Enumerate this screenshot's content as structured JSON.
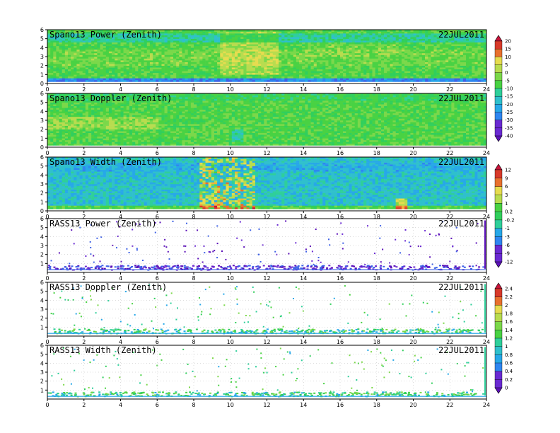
{
  "date": "22JUL2011",
  "colors": {
    "spectrum": [
      "#5b10b8",
      "#6a2ad2",
      "#3f62e6",
      "#2f86f0",
      "#27a8e8",
      "#2fc0cc",
      "#2fcf9a",
      "#31cf5c",
      "#49d243",
      "#7bd84a",
      "#b8dc4f",
      "#e6dc4f",
      "#f0b03d",
      "#e8702e",
      "#d83a2a",
      "#c8143a"
    ],
    "background": "#ffffff"
  },
  "colorbars": [
    {
      "name": "spano-power-doppler",
      "labels": [
        "20",
        "15",
        "10",
        "5",
        "0",
        "-5",
        "-10",
        "-15",
        "-20",
        "-25",
        "-30",
        "-35",
        "-40"
      ]
    },
    {
      "name": "spano-width-rass-power",
      "labels": [
        "12",
        "9",
        "6",
        "3",
        "1",
        "0.2",
        "-0.2",
        "-1",
        "-3",
        "-6",
        "-9",
        "-12"
      ]
    },
    {
      "name": "rass-doppler-width",
      "labels": [
        "2.4",
        "2.2",
        "2",
        "1.8",
        "1.6",
        "1.4",
        "1.2",
        "1",
        "0.8",
        "0.6",
        "0.4",
        "0.2",
        "0"
      ]
    }
  ],
  "chart_data": [
    {
      "type": "heatmap",
      "title": "Spano13 Power (Zenith)",
      "date": "22JUL2011",
      "x_range": [
        0,
        24
      ],
      "y_range": [
        0,
        6
      ],
      "x_ticks": [
        "0",
        "2",
        "4",
        "6",
        "8",
        "10",
        "12",
        "14",
        "16",
        "18",
        "20",
        "22",
        "24"
      ],
      "y_ticks": [
        "0",
        "1",
        "2",
        "3",
        "4",
        "5",
        "6"
      ],
      "fill": "dense",
      "color_scale": "spano-power-doppler"
    },
    {
      "type": "heatmap",
      "title": "Spano13 Doppler (Zenith)",
      "date": "22JUL2011",
      "x_range": [
        0,
        24
      ],
      "y_range": [
        0,
        6
      ],
      "x_ticks": [
        "0",
        "2",
        "4",
        "6",
        "8",
        "10",
        "12",
        "14",
        "16",
        "18",
        "20",
        "22",
        "24"
      ],
      "y_ticks": [
        "0",
        "1",
        "2",
        "3",
        "4",
        "5",
        "6"
      ],
      "fill": "dense",
      "color_scale": "spano-power-doppler"
    },
    {
      "type": "heatmap",
      "title": "Spano13 Width (Zenith)",
      "date": "22JUL2011",
      "x_range": [
        0,
        24
      ],
      "y_range": [
        0,
        6
      ],
      "x_ticks": [
        "0",
        "2",
        "4",
        "6",
        "8",
        "10",
        "12",
        "14",
        "16",
        "18",
        "20",
        "22",
        "24"
      ],
      "y_ticks": [
        "0",
        "1",
        "2",
        "3",
        "4",
        "5",
        "6"
      ],
      "fill": "dense",
      "color_scale": "spano-width-rass-power"
    },
    {
      "type": "heatmap",
      "title": "RASS13 Power (Zenith)",
      "date": "22JUL2011",
      "x_range": [
        0,
        24
      ],
      "y_range": [
        0,
        6
      ],
      "x_ticks": [
        "0",
        "2",
        "4",
        "6",
        "8",
        "10",
        "12",
        "14",
        "16",
        "18",
        "20",
        "22",
        "24"
      ],
      "y_ticks": [
        "1",
        "2",
        "3",
        "4",
        "5",
        "6"
      ],
      "fill": "sparse",
      "color_scale": "spano-width-rass-power"
    },
    {
      "type": "heatmap",
      "title": "RASS13 Doppler (Zenith)",
      "date": "22JUL2011",
      "x_range": [
        0,
        24
      ],
      "y_range": [
        0,
        6
      ],
      "x_ticks": [
        "0",
        "2",
        "4",
        "6",
        "8",
        "10",
        "12",
        "14",
        "16",
        "18",
        "20",
        "22",
        "24"
      ],
      "y_ticks": [
        "1",
        "2",
        "3",
        "4",
        "5",
        "6"
      ],
      "fill": "sparse",
      "color_scale": "rass-doppler-width"
    },
    {
      "type": "heatmap",
      "title": "RASS13 Width (Zenith)",
      "date": "22JUL2011",
      "x_range": [
        0,
        24
      ],
      "y_range": [
        0,
        6
      ],
      "x_ticks": [
        "0",
        "2",
        "4",
        "6",
        "8",
        "10",
        "12",
        "14",
        "16",
        "18",
        "20",
        "22",
        "24"
      ],
      "y_ticks": [
        "1",
        "2",
        "3",
        "4",
        "5",
        "6"
      ],
      "fill": "sparse",
      "color_scale": "rass-doppler-width"
    }
  ]
}
